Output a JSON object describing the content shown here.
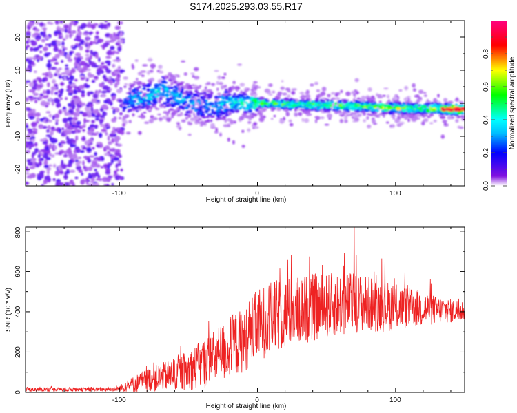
{
  "chart_data": [
    {
      "type": "heatmap",
      "title": "S174.2025.293.03.55.R17",
      "xlabel": "Height of straight line (km)",
      "ylabel": "Frequency (Hz)",
      "xlim": [
        -168,
        150
      ],
      "ylim": [
        -25,
        25
      ],
      "xticks": [
        -100,
        0,
        100
      ],
      "xtick_labels": [
        "-100",
        "0",
        "100"
      ],
      "yticks": [
        -20,
        -10,
        0,
        10,
        20
      ],
      "ytick_labels": [
        "-20",
        "-10",
        "0",
        "10",
        "20"
      ],
      "colorbar": {
        "label": "Normalized spectral amplitude",
        "range": [
          0.0,
          1.0
        ],
        "ticks": [
          0.0,
          0.2,
          0.4,
          0.6,
          0.8
        ],
        "tick_labels": [
          "0.0",
          "0.2",
          "0.4",
          "0.6",
          "0.8"
        ],
        "colormap": [
          "#e8d8f8",
          "#7000e0",
          "#0000ff",
          "#00ffff",
          "#00ff00",
          "#ffff00",
          "#ff0000",
          "#ff0080"
        ]
      },
      "ridge": {
        "x": [
          -100,
          -80,
          -70,
          -60,
          -40,
          -20,
          0,
          20,
          40,
          60,
          80,
          100,
          120,
          145
        ],
        "center_hz": [
          0.5,
          2,
          4,
          2,
          -1,
          0,
          0,
          -0.3,
          -0.5,
          -0.8,
          -1.0,
          -1.5,
          -1.5,
          -1.8
        ],
        "amplitude": [
          0.25,
          0.35,
          0.4,
          0.35,
          0.3,
          0.4,
          0.55,
          0.55,
          0.55,
          0.6,
          0.6,
          0.65,
          0.6,
          0.95
        ]
      }
    },
    {
      "type": "line",
      "xlabel": "Height of straight line (km)",
      "ylabel": "SNR (10 * v/v)",
      "xlim": [
        -168,
        150
      ],
      "ylim": [
        0,
        820
      ],
      "xticks": [
        -100,
        0,
        100
      ],
      "xtick_labels": [
        "-100",
        "0",
        "100"
      ],
      "yticks": [
        0,
        200,
        400,
        600,
        800
      ],
      "ytick_labels": [
        "0",
        "200",
        "400",
        "600",
        "800"
      ],
      "series": [
        {
          "name": "SNR",
          "color": "#ee2222",
          "envelope_x": [
            -168,
            -140,
            -110,
            -100,
            -90,
            -80,
            -70,
            -60,
            -50,
            -40,
            -30,
            -20,
            -10,
            0,
            10,
            20,
            30,
            40,
            50,
            60,
            70,
            80,
            90,
            100,
            110,
            120,
            130,
            140,
            150
          ],
          "envelope_mean": [
            15,
            15,
            15,
            20,
            40,
            60,
            75,
            90,
            110,
            140,
            180,
            220,
            270,
            330,
            370,
            390,
            410,
            420,
            430,
            440,
            445,
            440,
            430,
            425,
            420,
            415,
            410,
            405,
            405
          ],
          "envelope_amp": [
            10,
            10,
            10,
            15,
            40,
            60,
            70,
            80,
            100,
            120,
            140,
            160,
            170,
            180,
            180,
            180,
            170,
            170,
            160,
            160,
            150,
            140,
            130,
            120,
            100,
            90,
            70,
            60,
            50
          ],
          "peak_x": 70,
          "peak_y": 820
        }
      ]
    }
  ]
}
